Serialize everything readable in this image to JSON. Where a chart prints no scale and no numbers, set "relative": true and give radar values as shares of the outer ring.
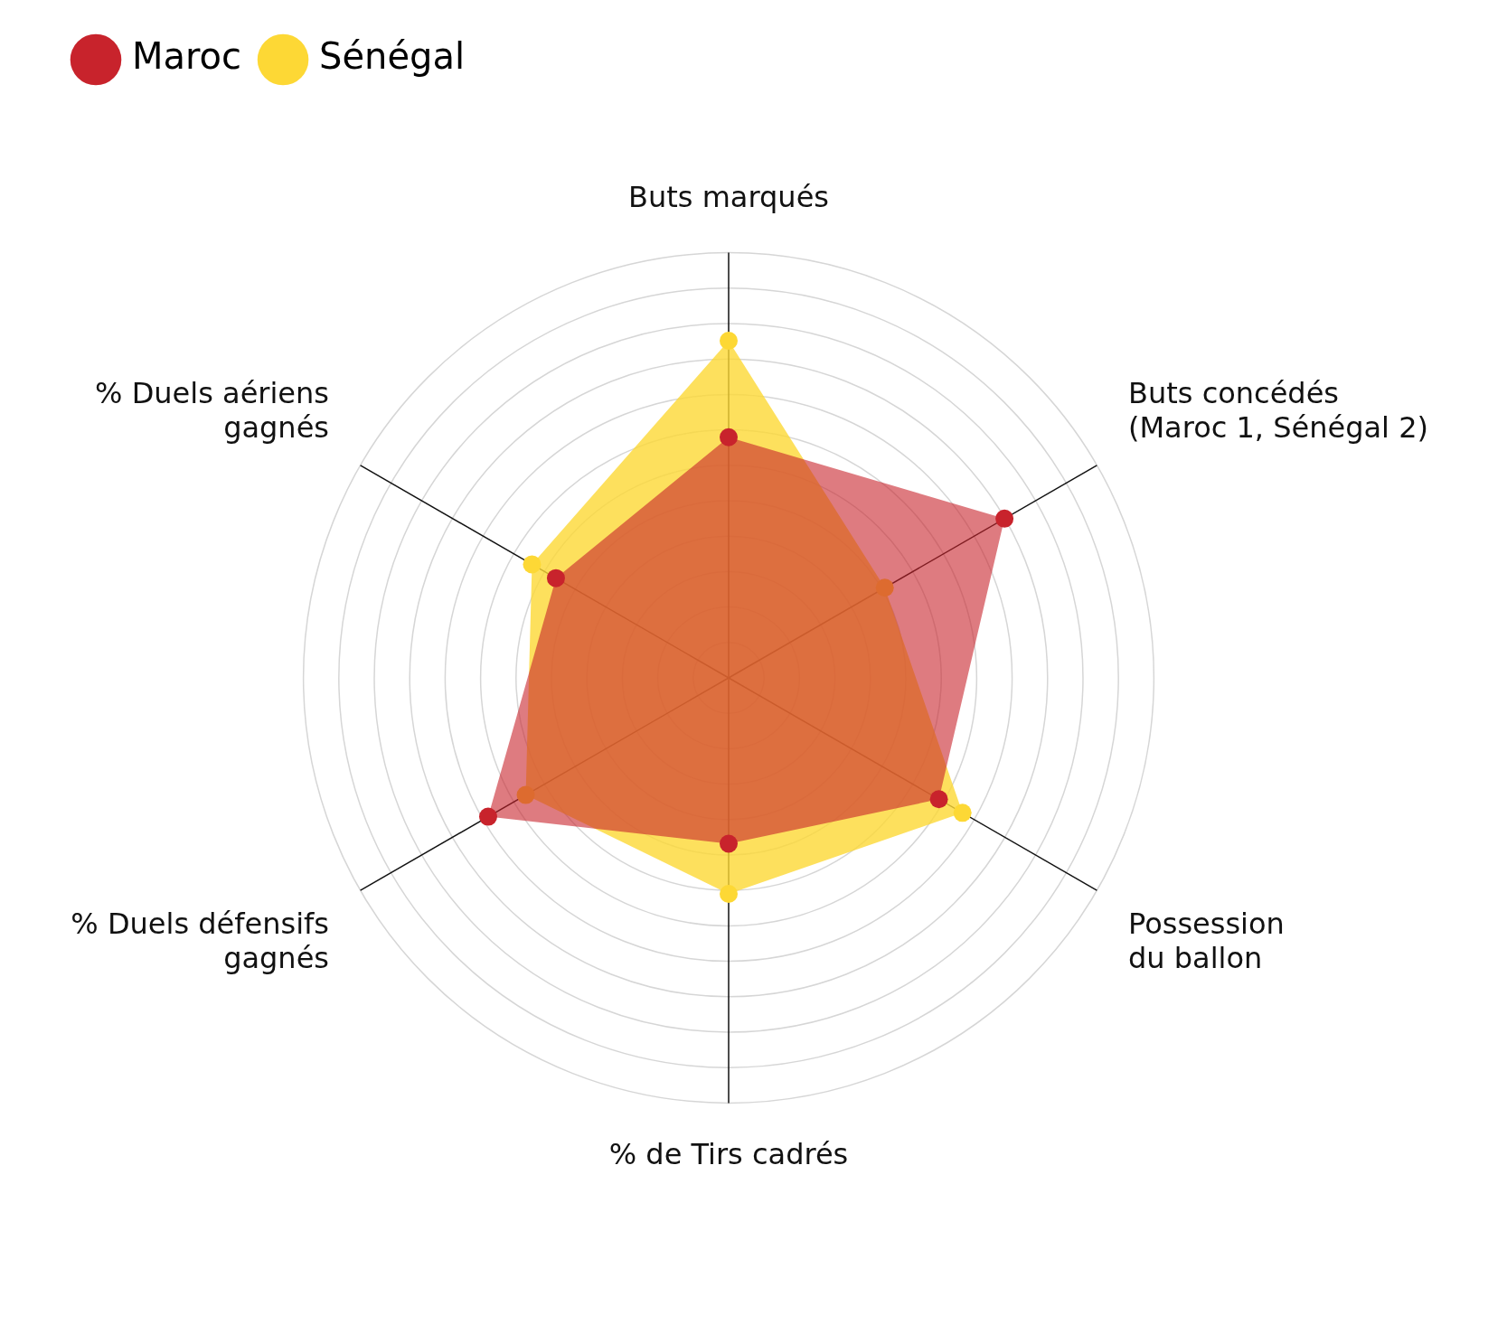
{
  "chart_data": {
    "type": "radar",
    "relative": true,
    "categories": [
      "Buts marqués",
      "Buts concédés\n(Maroc 1, Sénégal 2)",
      "Possession\ndu ballon",
      "% de Tirs cadrés",
      "% Duels défensifs\ngagnés",
      "% Duels aériens\ngagnés"
    ],
    "series": [
      {
        "name": "Maroc",
        "color": "#c8232c",
        "values": [
          0.566,
          0.749,
          0.571,
          0.39,
          0.653,
          0.469
        ]
      },
      {
        "name": "Sénégal",
        "color": "#fdd835",
        "values": [
          0.793,
          0.424,
          0.635,
          0.508,
          0.551,
          0.534
        ]
      }
    ],
    "legend": "top left",
    "grid": true,
    "marker": "circle"
  }
}
